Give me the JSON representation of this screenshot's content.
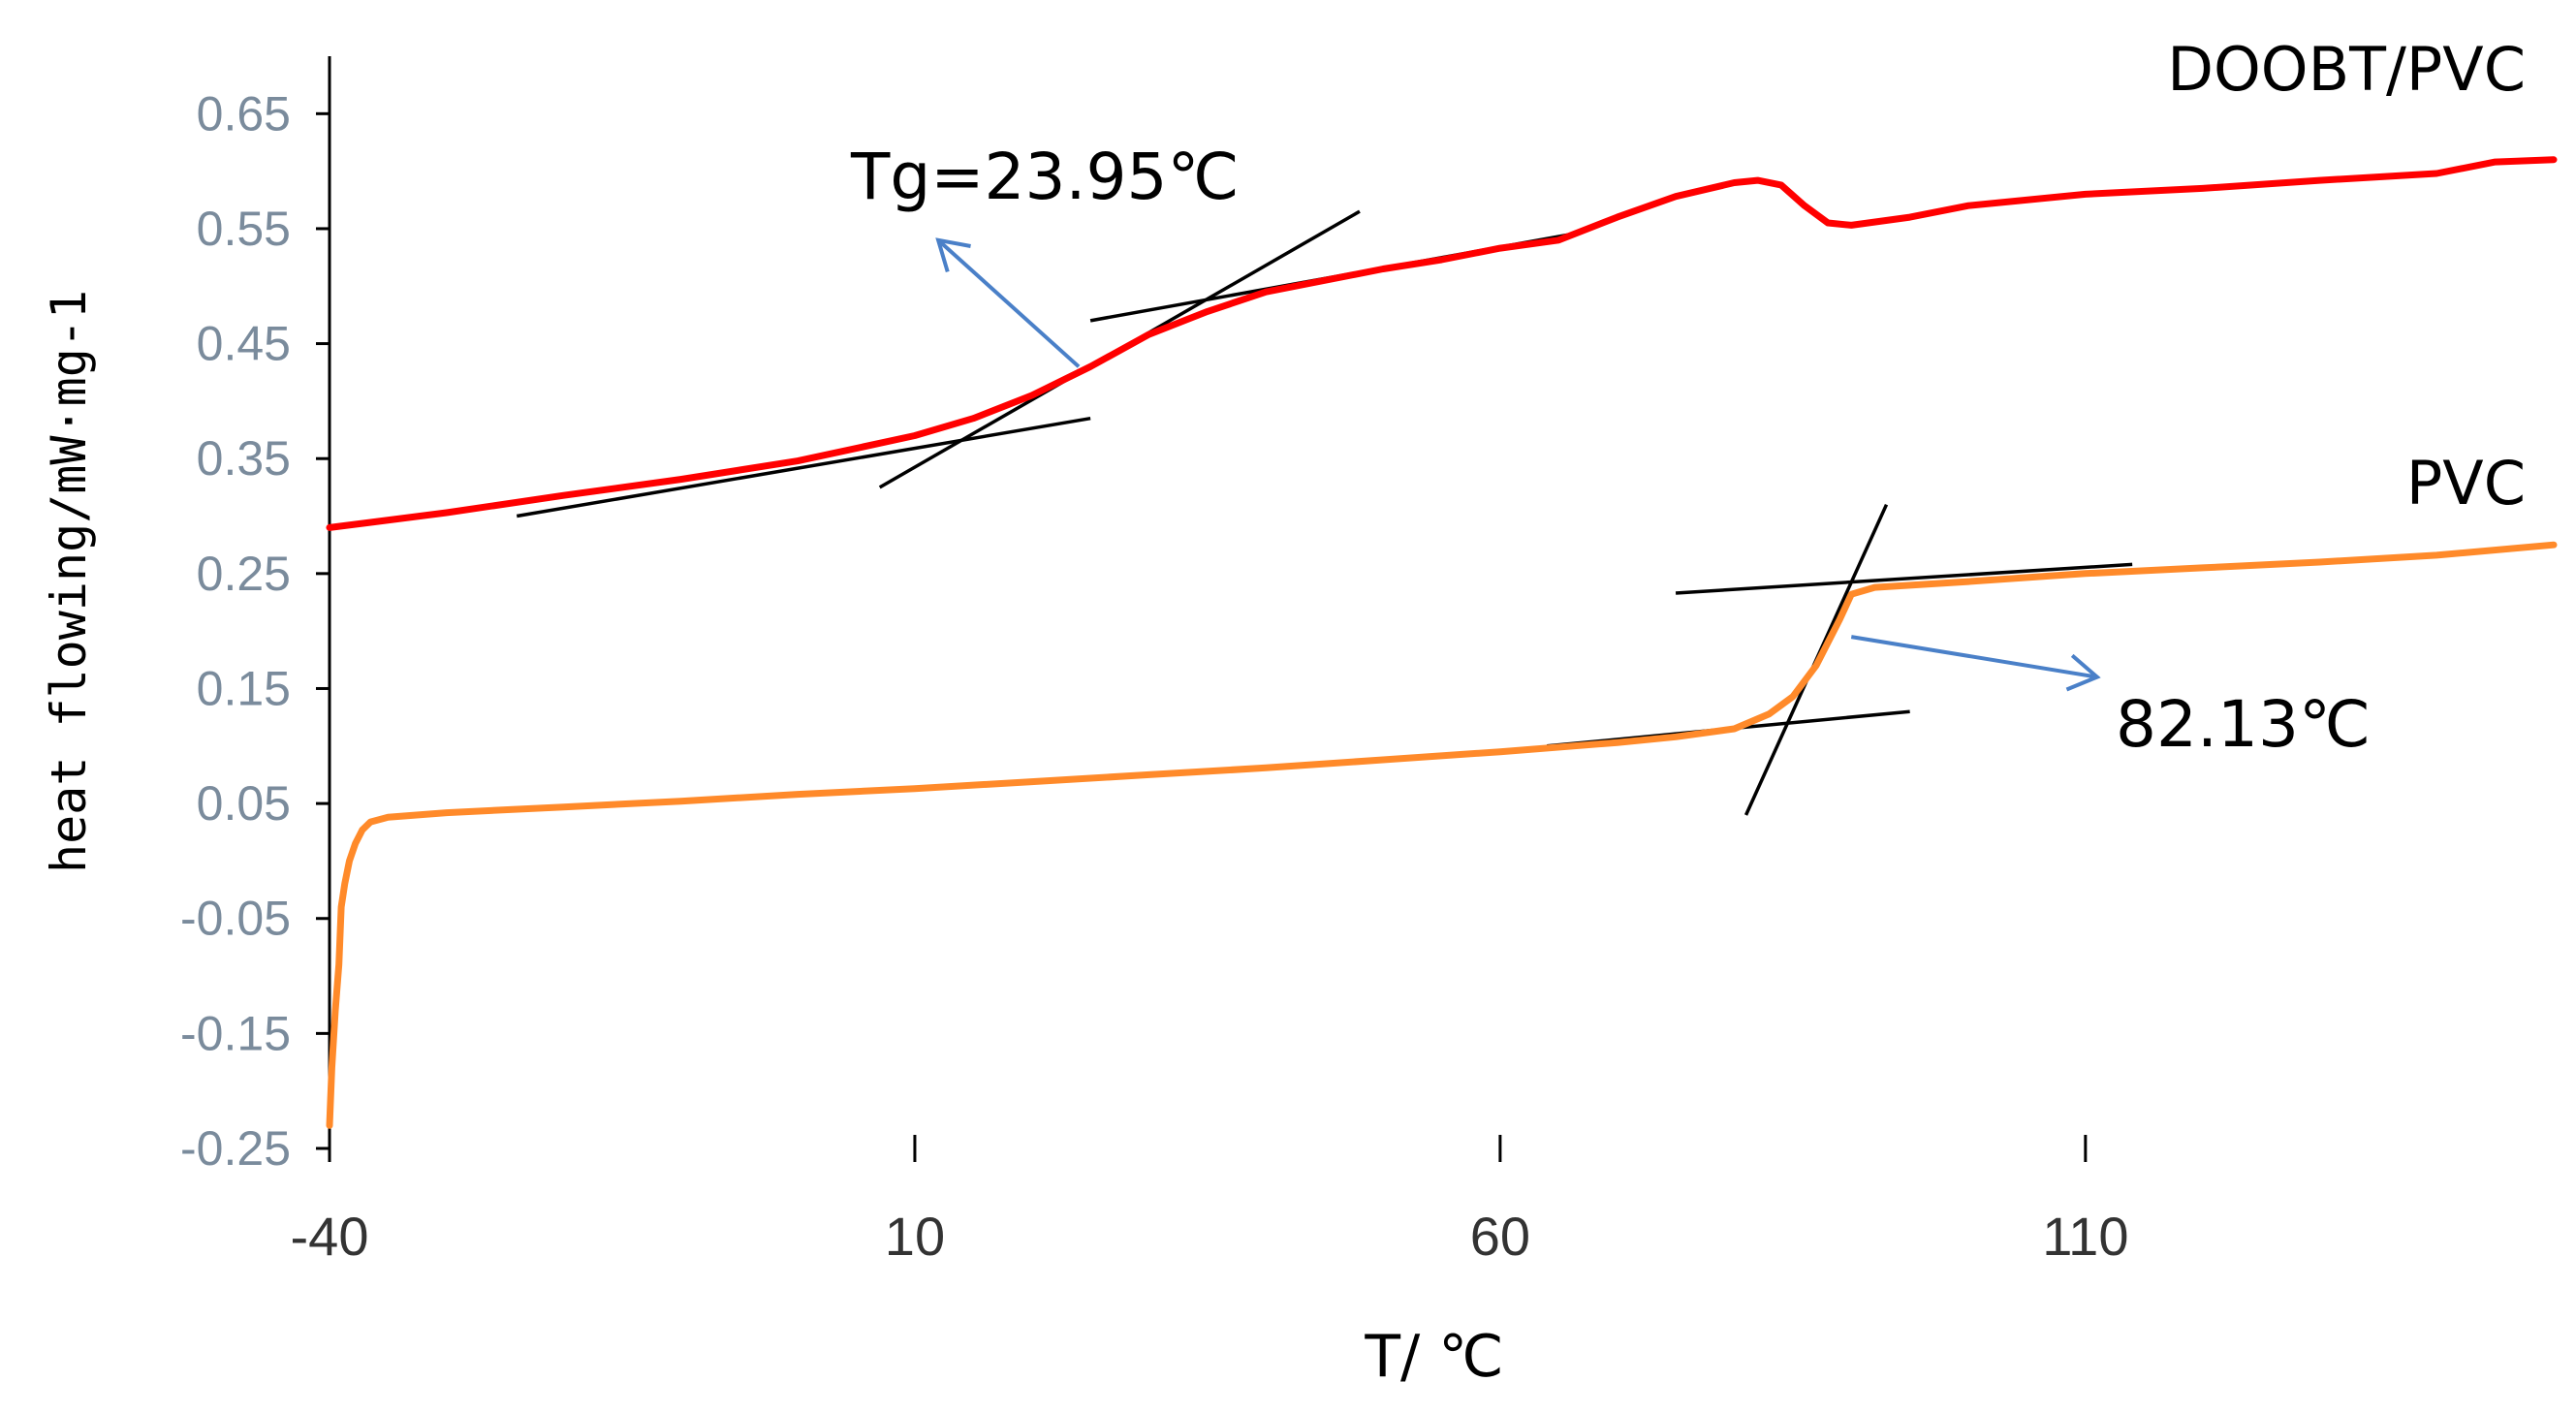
{
  "chart_data": {
    "type": "line",
    "xlabel": "T/ ℃",
    "ylabel": "heat flowing/mW·mg-1",
    "xlim": [
      -40,
      150
    ],
    "ylim": [
      -0.25,
      0.7
    ],
    "x_ticks": [
      -40,
      10,
      60,
      110
    ],
    "x_tick_labels": [
      "-40",
      "10",
      "60",
      "110"
    ],
    "y_ticks": [
      0.65,
      0.55,
      0.45,
      0.35,
      0.25,
      0.15,
      0.05,
      -0.05,
      -0.15,
      -0.25
    ],
    "y_tick_labels": [
      "0.65",
      "0.55",
      "0.45",
      "0.35",
      "0.25",
      "0.15",
      "0.05",
      "-0.05",
      "-0.15",
      "-0.25"
    ],
    "grid": false,
    "series": [
      {
        "name": "DOOBT/PVC",
        "color": "#ff0000",
        "points": [
          [
            -40,
            0.29
          ],
          [
            -30,
            0.303
          ],
          [
            -20,
            0.318
          ],
          [
            -10,
            0.332
          ],
          [
            0,
            0.348
          ],
          [
            10,
            0.37
          ],
          [
            15,
            0.385
          ],
          [
            20,
            0.405
          ],
          [
            25,
            0.43
          ],
          [
            30,
            0.458
          ],
          [
            35,
            0.478
          ],
          [
            40,
            0.495
          ],
          [
            45,
            0.505
          ],
          [
            50,
            0.515
          ],
          [
            55,
            0.523
          ],
          [
            60,
            0.533
          ],
          [
            65,
            0.54
          ],
          [
            70,
            0.56
          ],
          [
            75,
            0.578
          ],
          [
            80,
            0.59
          ],
          [
            82,
            0.592
          ],
          [
            84,
            0.588
          ],
          [
            86,
            0.57
          ],
          [
            88,
            0.555
          ],
          [
            90,
            0.553
          ],
          [
            95,
            0.56
          ],
          [
            100,
            0.57
          ],
          [
            110,
            0.58
          ],
          [
            120,
            0.585
          ],
          [
            130,
            0.592
          ],
          [
            140,
            0.598
          ],
          [
            145,
            0.608
          ],
          [
            150,
            0.61
          ]
        ]
      },
      {
        "name": "PVC",
        "color": "#ff8a2a",
        "points": [
          [
            -40,
            -0.23
          ],
          [
            -39.8,
            -0.18
          ],
          [
            -39.5,
            -0.13
          ],
          [
            -39.2,
            -0.09
          ],
          [
            -39,
            -0.04
          ],
          [
            -38.7,
            -0.02
          ],
          [
            -38.3,
            0.0
          ],
          [
            -37.8,
            0.015
          ],
          [
            -37.2,
            0.027
          ],
          [
            -36.5,
            0.034
          ],
          [
            -35,
            0.038
          ],
          [
            -30,
            0.042
          ],
          [
            -20,
            0.047
          ],
          [
            -10,
            0.052
          ],
          [
            0,
            0.058
          ],
          [
            10,
            0.063
          ],
          [
            20,
            0.069
          ],
          [
            30,
            0.075
          ],
          [
            40,
            0.081
          ],
          [
            50,
            0.088
          ],
          [
            60,
            0.095
          ],
          [
            70,
            0.103
          ],
          [
            75,
            0.108
          ],
          [
            80,
            0.115
          ],
          [
            83,
            0.128
          ],
          [
            85,
            0.143
          ],
          [
            87,
            0.17
          ],
          [
            89,
            0.21
          ],
          [
            90,
            0.232
          ],
          [
            92,
            0.238
          ],
          [
            100,
            0.243
          ],
          [
            110,
            0.25
          ],
          [
            120,
            0.255
          ],
          [
            130,
            0.26
          ],
          [
            140,
            0.266
          ],
          [
            150,
            0.275
          ]
        ]
      }
    ],
    "tangent_lines": [
      {
        "from": [
          -24,
          0.3
        ],
        "to": [
          25,
          0.385
        ]
      },
      {
        "from": [
          7,
          0.325
        ],
        "to": [
          48,
          0.565
        ]
      },
      {
        "from": [
          25,
          0.47
        ],
        "to": [
          66,
          0.545
        ]
      },
      {
        "from": [
          64,
          0.1
        ],
        "to": [
          95,
          0.13
        ]
      },
      {
        "from": [
          81,
          0.04
        ],
        "to": [
          93,
          0.31
        ]
      },
      {
        "from": [
          75,
          0.233
        ],
        "to": [
          114,
          0.258
        ]
      }
    ],
    "annotations": [
      {
        "text": "Tg=23.95℃",
        "arrow_from": [
          24,
          0.43
        ],
        "arrow_to": [
          12,
          0.54
        ]
      },
      {
        "text": "82.13℃",
        "arrow_from": [
          90,
          0.195
        ],
        "arrow_to": [
          111,
          0.16
        ]
      }
    ]
  }
}
